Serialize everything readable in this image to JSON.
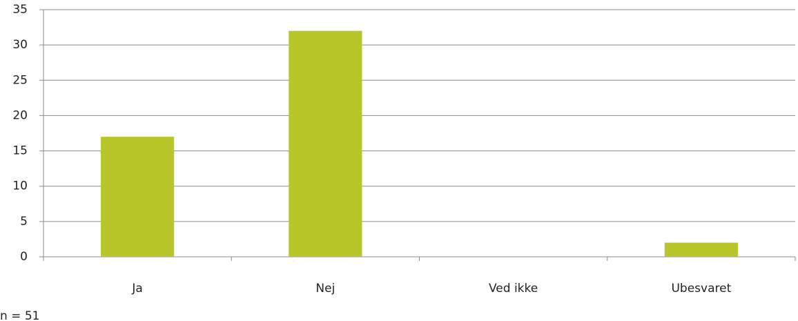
{
  "chart_data": {
    "type": "bar",
    "categories": [
      "Ja",
      "Nej",
      "Ved ikke",
      "Ubesvaret"
    ],
    "values": [
      17,
      32,
      0,
      2
    ],
    "color": "#b8c62a",
    "ylim": [
      0,
      35
    ],
    "yticks": [
      0,
      5,
      10,
      15,
      20,
      25,
      30,
      35
    ],
    "grid": true,
    "note": "n = 51"
  }
}
